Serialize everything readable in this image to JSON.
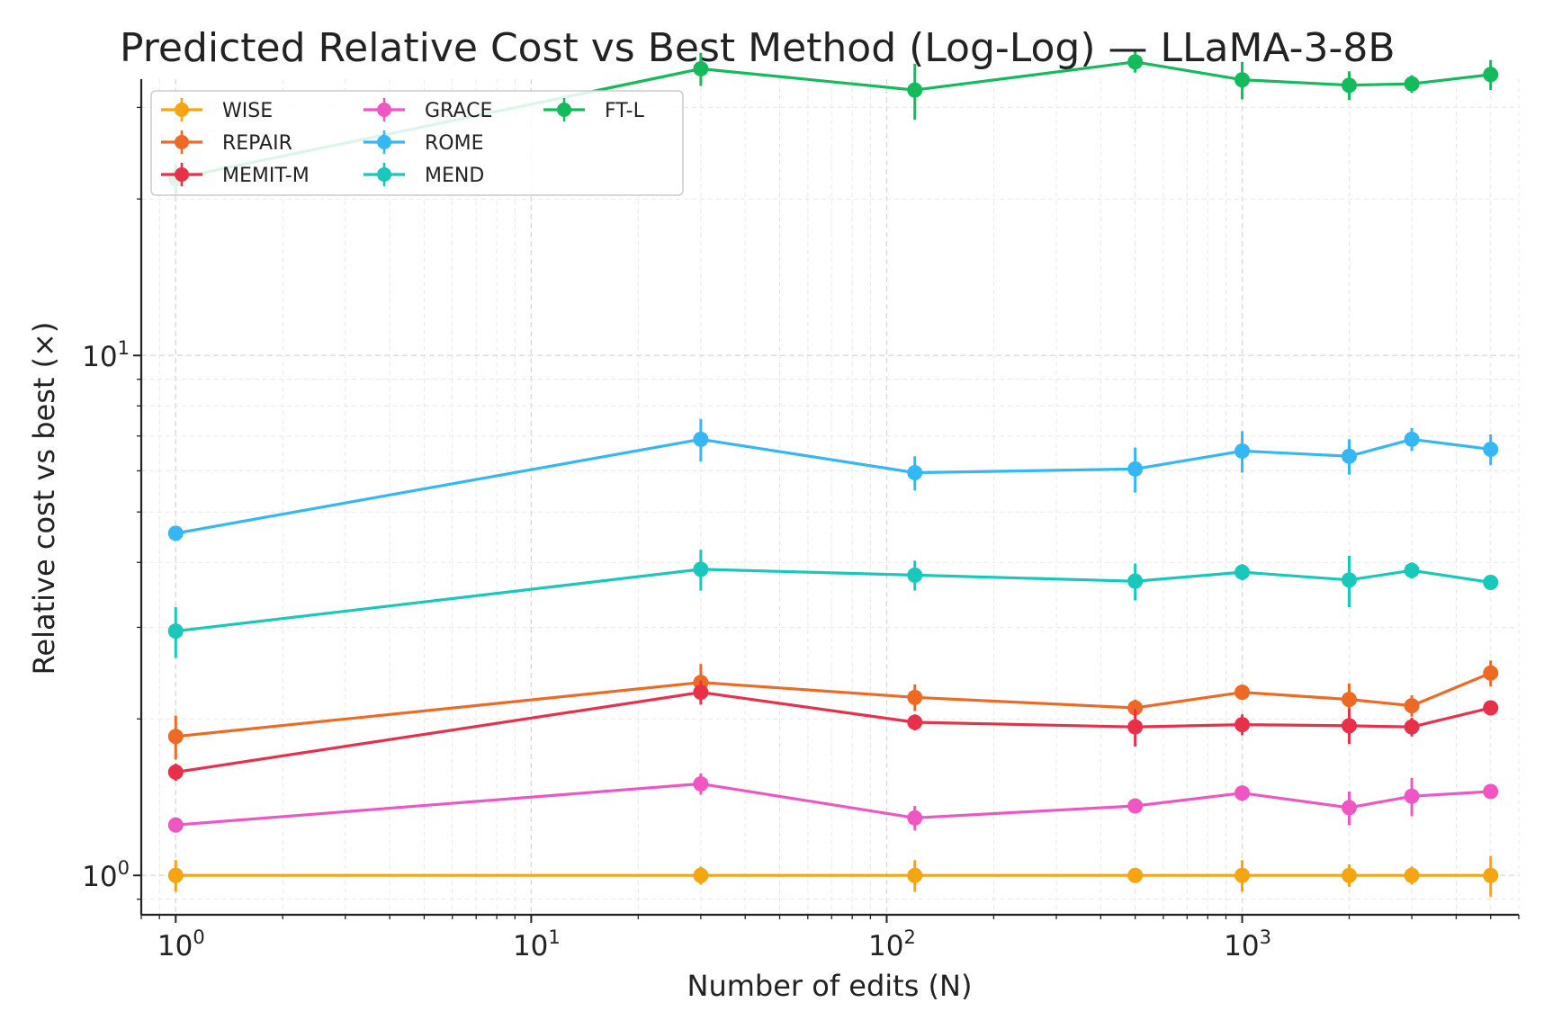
{
  "chart_data": {
    "type": "line",
    "title": "Predicted Relative Cost vs Best Method (Log-Log) — LLaMA-3-8B",
    "xlabel": "Number of edits (N)",
    "ylabel": "Relative cost vs best (×)",
    "x_scale": "log",
    "y_scale": "log",
    "xlim": [
      0.8,
      6000
    ],
    "ylim": [
      0.84,
      34
    ],
    "x_ticks": [
      {
        "value": 1,
        "base": "10",
        "exp": "0"
      },
      {
        "value": 10,
        "base": "10",
        "exp": "1"
      },
      {
        "value": 100,
        "base": "10",
        "exp": "2"
      },
      {
        "value": 1000,
        "base": "10",
        "exp": "3"
      }
    ],
    "y_ticks": [
      {
        "value": 1,
        "base": "10",
        "exp": "0"
      },
      {
        "value": 10,
        "base": "10",
        "exp": "1"
      }
    ],
    "grid": true,
    "legend_position": "top-left",
    "x": [
      1,
      30,
      120,
      500,
      1000,
      2000,
      3000,
      5000
    ],
    "series": [
      {
        "name": "WISE",
        "color": "#f5a511",
        "values": [
          1.0,
          1.0,
          1.0,
          1.0,
          1.0,
          1.0,
          1.0,
          1.0
        ],
        "errors": [
          0.07,
          0.04,
          0.07,
          0.03,
          0.07,
          0.05,
          0.04,
          0.09
        ]
      },
      {
        "name": "REPAIR",
        "color": "#ee6a24",
        "values": [
          1.85,
          2.35,
          2.2,
          2.1,
          2.25,
          2.18,
          2.12,
          2.45
        ],
        "errors": [
          0.18,
          0.2,
          0.13,
          0.08,
          0.06,
          0.16,
          0.1,
          0.14
        ]
      },
      {
        "name": "MEMIT-M",
        "color": "#e8304b",
        "values": [
          1.58,
          2.25,
          1.97,
          1.93,
          1.95,
          1.94,
          1.93,
          2.1
        ],
        "errors": [
          0.06,
          0.12,
          0.07,
          0.16,
          0.09,
          0.15,
          0.08,
          0.07
        ]
      },
      {
        "name": "GRACE",
        "color": "#f055c4",
        "values": [
          1.25,
          1.5,
          1.29,
          1.36,
          1.44,
          1.35,
          1.42,
          1.45
        ],
        "errors": [
          0.04,
          0.07,
          0.07,
          0.04,
          0.05,
          0.1,
          0.12,
          0.04
        ]
      },
      {
        "name": "ROME",
        "color": "#35b7f5",
        "values": [
          4.55,
          6.9,
          5.95,
          6.05,
          6.55,
          6.4,
          6.9,
          6.6
        ],
        "errors": [
          0.15,
          0.65,
          0.45,
          0.6,
          0.6,
          0.5,
          0.35,
          0.45
        ]
      },
      {
        "name": "MEND",
        "color": "#17c8bb",
        "values": [
          2.95,
          3.88,
          3.78,
          3.68,
          3.83,
          3.7,
          3.86,
          3.66
        ],
        "errors": [
          0.33,
          0.35,
          0.25,
          0.3,
          0.14,
          0.42,
          0.14,
          0.12
        ]
      },
      {
        "name": "FT-L",
        "color": "#13bb5b",
        "values": [
          21.9,
          35.6,
          32.4,
          36.7,
          33.9,
          33.1,
          33.3,
          34.7
        ],
        "errors": [
          1.6,
          2.6,
          4.0,
          1.7,
          2.8,
          2.1,
          1.3,
          2.3
        ]
      }
    ]
  }
}
